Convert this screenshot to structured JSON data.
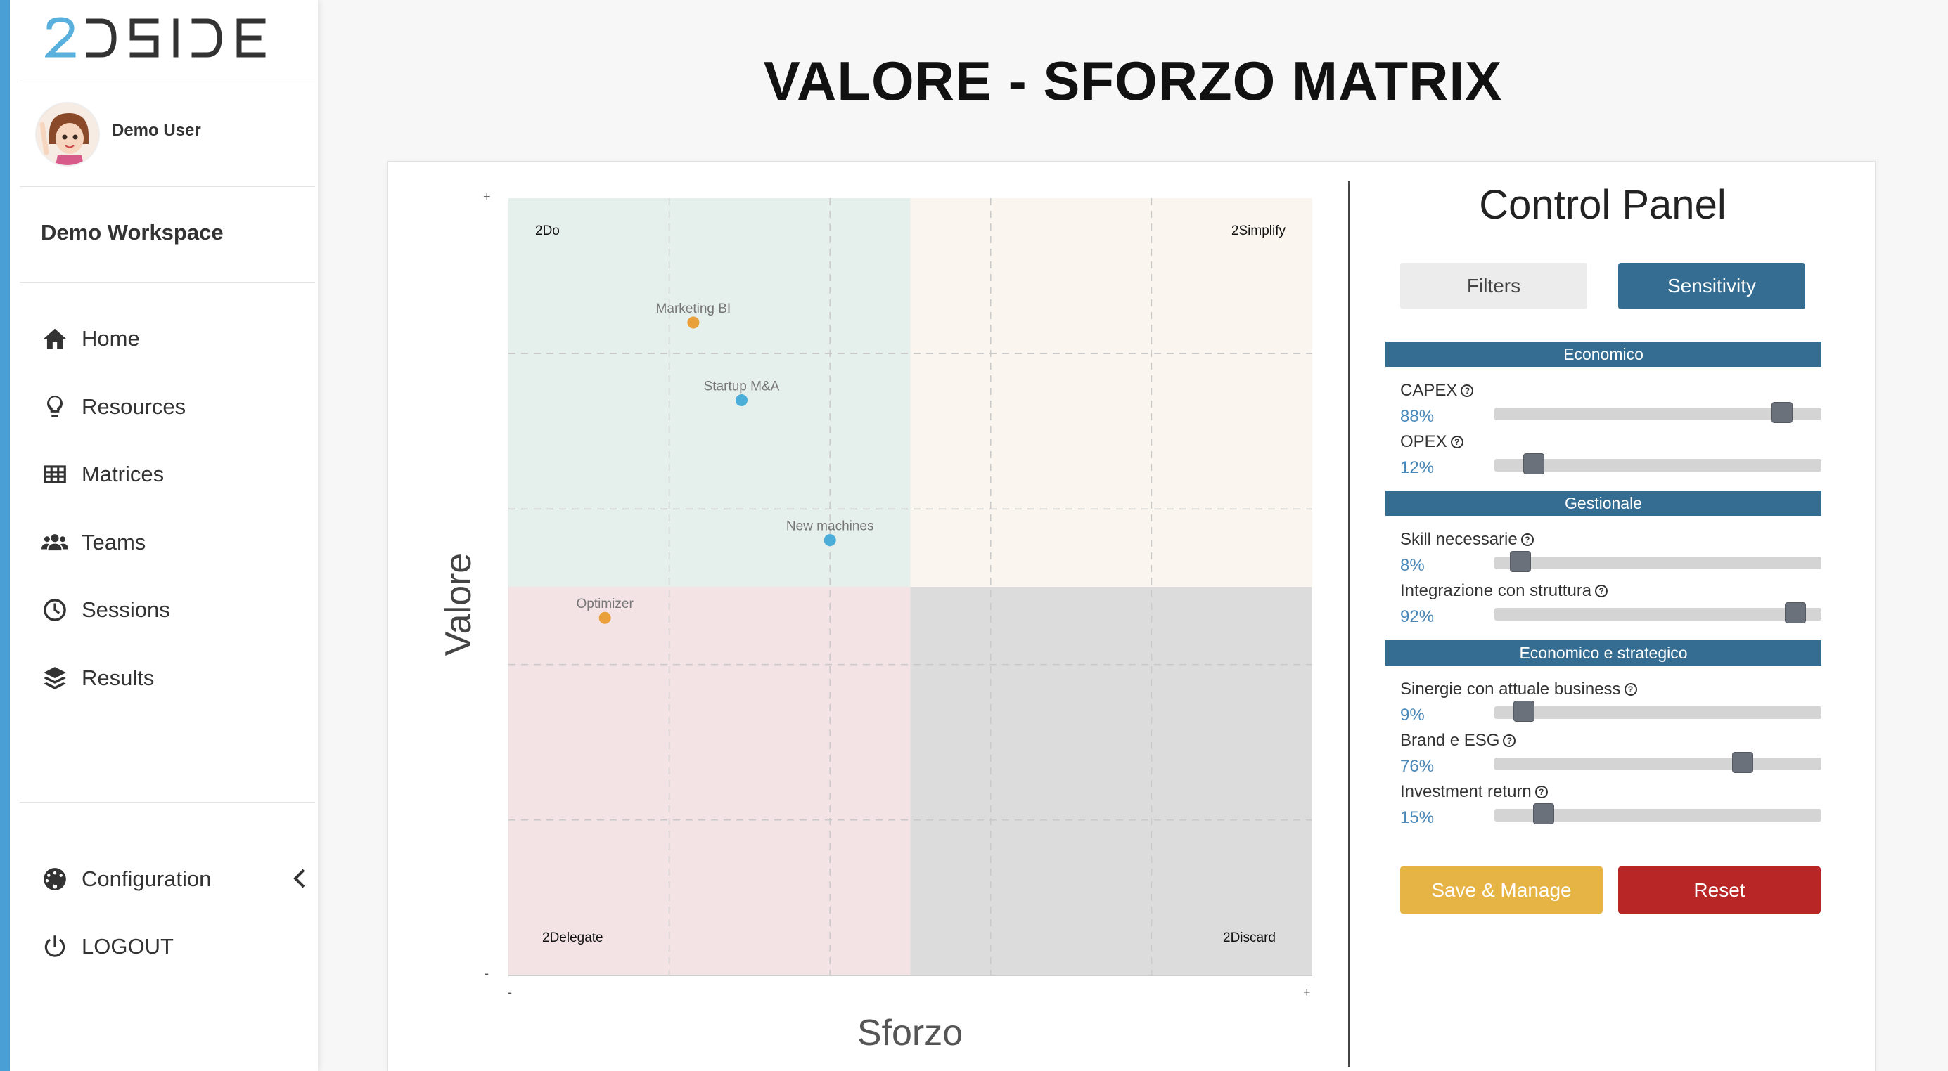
{
  "app": {
    "logo_text": "2DSIDE",
    "page_title": "VALORE - SFORZO MATRIX"
  },
  "sidebar": {
    "user_name": "Demo User",
    "workspace": "Demo Workspace",
    "nav": [
      {
        "label": "Home",
        "icon": "home-icon"
      },
      {
        "label": "Resources",
        "icon": "lightbulb-icon"
      },
      {
        "label": "Matrices",
        "icon": "grid-icon"
      },
      {
        "label": "Teams",
        "icon": "users-icon"
      },
      {
        "label": "Sessions",
        "icon": "clock-icon"
      },
      {
        "label": "Results",
        "icon": "layers-icon"
      }
    ],
    "bottom_nav": [
      {
        "label": "Configuration",
        "icon": "dashboard-icon"
      },
      {
        "label": "LOGOUT",
        "icon": "power-icon"
      }
    ],
    "accent_color": "#4a9fd4"
  },
  "chart_data": {
    "type": "scatter",
    "title": "",
    "xlabel": "Sforzo",
    "ylabel": "Valore",
    "xlim": [
      0,
      100
    ],
    "ylim": [
      0,
      100
    ],
    "x_ticks": [
      "-",
      "+"
    ],
    "y_ticks": [
      "+",
      "-"
    ],
    "grid": true,
    "quadrants": [
      {
        "label": "2Do",
        "position": "top-left",
        "color": "#e5efec"
      },
      {
        "label": "2Simplify",
        "position": "top-right",
        "color": "#faf5ef"
      },
      {
        "label": "2Delegate",
        "position": "bottom-left",
        "color": "#f3e3e4"
      },
      {
        "label": "2Discard",
        "position": "bottom-right",
        "color": "#dcdcdc"
      }
    ],
    "points": [
      {
        "label": "Marketing BI",
        "x": 23,
        "y": 84,
        "color": "#e9a03b"
      },
      {
        "label": "Startup M&A",
        "x": 29,
        "y": 74,
        "color": "#4aaed8"
      },
      {
        "label": "New machines",
        "x": 40,
        "y": 56,
        "color": "#4aaed8"
      },
      {
        "label": "Optimizer",
        "x": 12,
        "y": 46,
        "color": "#e9a03b"
      }
    ]
  },
  "control_panel": {
    "title": "Control Panel",
    "tabs": [
      {
        "label": "Filters",
        "active": false
      },
      {
        "label": "Sensitivity",
        "active": true
      }
    ],
    "sections": [
      {
        "title": "Economico",
        "params": [
          {
            "label": "CAPEX",
            "value_text": "88%",
            "value": 88
          },
          {
            "label": "OPEX",
            "value_text": "12%",
            "value": 12
          }
        ]
      },
      {
        "title": "Gestionale",
        "params": [
          {
            "label": "Skill necessarie",
            "value_text": "8%",
            "value": 8
          },
          {
            "label": "Integrazione con struttura",
            "value_text": "92%",
            "value": 92
          }
        ]
      },
      {
        "title": "Economico e strategico",
        "params": [
          {
            "label": "Sinergie con attuale business",
            "value_text": "9%",
            "value": 9
          },
          {
            "label": "Brand e ESG",
            "value_text": "76%",
            "value": 76
          },
          {
            "label": "Investment return",
            "value_text": "15%",
            "value": 15
          }
        ]
      }
    ],
    "save_label": "Save & Manage",
    "reset_label": "Reset",
    "primary_color": "#356d92"
  }
}
